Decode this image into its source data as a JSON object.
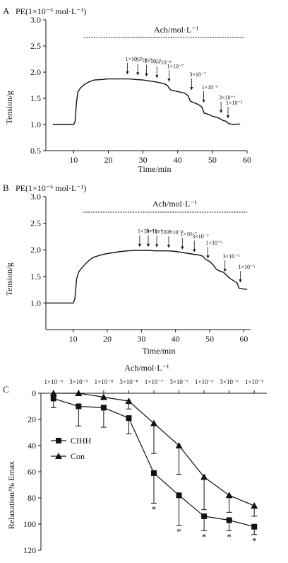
{
  "chart_data": [
    {
      "id": "A",
      "type": "line",
      "panel_label": "A",
      "pe_label": "PE(1×10⁻⁶ mol·L⁻¹)",
      "ach_label": "Ach/mol·L⁻¹",
      "xlabel": "Time/min",
      "ylabel": "Tension/g",
      "xlim": [
        2,
        60
      ],
      "ylim": [
        0.5,
        3.0
      ],
      "x_ticks": [
        "10",
        "20",
        "30",
        "40",
        "50",
        "60"
      ],
      "y_ticks": [
        "0.5",
        "1.0",
        "1.5",
        "2.0",
        "2.5",
        "3.0"
      ],
      "ach_bar": [
        13,
        59
      ],
      "trace": [
        [
          4,
          1.0
        ],
        [
          6,
          1.0
        ],
        [
          8,
          1.0
        ],
        [
          10,
          1.0
        ],
        [
          10.4,
          1.05
        ],
        [
          10.8,
          1.4
        ],
        [
          11.2,
          1.62
        ],
        [
          12,
          1.7
        ],
        [
          13,
          1.76
        ],
        [
          14,
          1.8
        ],
        [
          15,
          1.83
        ],
        [
          16,
          1.85
        ],
        [
          18,
          1.86
        ],
        [
          20,
          1.87
        ],
        [
          22,
          1.87
        ],
        [
          24,
          1.87
        ],
        [
          26,
          1.87
        ],
        [
          28,
          1.86
        ],
        [
          30,
          1.85
        ],
        [
          32,
          1.83
        ],
        [
          34,
          1.81
        ],
        [
          36,
          1.78
        ],
        [
          37,
          1.75
        ],
        [
          37.5,
          1.7
        ],
        [
          38,
          1.66
        ],
        [
          40,
          1.63
        ],
        [
          42,
          1.6
        ],
        [
          43,
          1.55
        ],
        [
          43.6,
          1.45
        ],
        [
          44.5,
          1.42
        ],
        [
          46,
          1.38
        ],
        [
          47,
          1.33
        ],
        [
          47.6,
          1.22
        ],
        [
          49,
          1.19
        ],
        [
          50,
          1.16
        ],
        [
          51,
          1.14
        ],
        [
          52,
          1.12
        ],
        [
          52.5,
          1.1
        ],
        [
          53,
          1.08
        ],
        [
          54,
          1.06
        ],
        [
          54.6,
          1.02
        ],
        [
          56,
          1.0
        ],
        [
          58,
          1.01
        ]
      ],
      "annotations": [
        {
          "text": "1×10⁻⁹",
          "x": 25.5,
          "y_tip": 1.92
        },
        {
          "text": "3×10⁻⁹",
          "x": 28.5,
          "y_tip": 1.9
        },
        {
          "text": "1×10⁻⁸",
          "x": 31,
          "y_tip": 1.88
        },
        {
          "text": "3×10⁻⁸",
          "x": 34,
          "y_tip": 1.85
        },
        {
          "text": "1×10⁻⁷",
          "x": 37.5,
          "y_tip": 1.78
        },
        {
          "text": "3×10⁻⁷",
          "x": 44,
          "y_tip": 1.62
        },
        {
          "text": "1×10⁻⁶",
          "x": 47.5,
          "y_tip": 1.38
        },
        {
          "text": "3×10⁻⁶",
          "x": 52.5,
          "y_tip": 1.18
        },
        {
          "text": "1×10⁻⁵",
          "x": 54.5,
          "y_tip": 1.08
        }
      ]
    },
    {
      "id": "B",
      "type": "line",
      "panel_label": "B",
      "pe_label": "PE(1×10⁻⁶ mol·L⁻¹)",
      "ach_label": "Ach/mol·L⁻¹",
      "xlabel": "Time/min",
      "ylabel": "Tension/g",
      "xlim": [
        2,
        62
      ],
      "ylim": [
        0.5,
        3.0
      ],
      "x_ticks": [
        "10",
        "20",
        "30",
        "40",
        "50",
        "60"
      ],
      "y_ticks": [
        "1.0",
        "1.5",
        "2.0",
        "2.5",
        "3.0"
      ],
      "ach_bar": [
        13,
        61
      ],
      "trace": [
        [
          2,
          1.0
        ],
        [
          5,
          1.0
        ],
        [
          8,
          1.0
        ],
        [
          10,
          1.0
        ],
        [
          10.5,
          1.08
        ],
        [
          11,
          1.45
        ],
        [
          11.6,
          1.58
        ],
        [
          12.5,
          1.66
        ],
        [
          14,
          1.76
        ],
        [
          15,
          1.82
        ],
        [
          16,
          1.86
        ],
        [
          18,
          1.9
        ],
        [
          20,
          1.93
        ],
        [
          22,
          1.95
        ],
        [
          24,
          1.97
        ],
        [
          26,
          1.98
        ],
        [
          28,
          1.99
        ],
        [
          30,
          1.99
        ],
        [
          32,
          1.99
        ],
        [
          34,
          1.98
        ],
        [
          36,
          1.98
        ],
        [
          38,
          1.98
        ],
        [
          40,
          1.97
        ],
        [
          42,
          1.95
        ],
        [
          44,
          1.93
        ],
        [
          46,
          1.91
        ],
        [
          47,
          1.9
        ],
        [
          48,
          1.88
        ],
        [
          48.8,
          1.82
        ],
        [
          50,
          1.78
        ],
        [
          51,
          1.72
        ],
        [
          52,
          1.63
        ],
        [
          53,
          1.6
        ],
        [
          54,
          1.58
        ],
        [
          55,
          1.52
        ],
        [
          56,
          1.46
        ],
        [
          57,
          1.42
        ],
        [
          58,
          1.38
        ],
        [
          58.6,
          1.28
        ],
        [
          60,
          1.26
        ],
        [
          61,
          1.26
        ]
      ],
      "annotations": [
        {
          "text": "1×10⁻⁹",
          "x": 29.5,
          "y_tip": 2.02
        },
        {
          "text": "3×10⁻⁹",
          "x": 32,
          "y_tip": 2.02
        },
        {
          "text": "1×10⁻⁸",
          "x": 34.5,
          "y_tip": 2.01
        },
        {
          "text": "3×10⁻⁸",
          "x": 38,
          "y_tip": 2.0
        },
        {
          "text": "1×10⁻⁷",
          "x": 42,
          "y_tip": 1.97
        },
        {
          "text": "3×10⁻⁷",
          "x": 45.5,
          "y_tip": 1.92
        },
        {
          "text": "1×10⁻⁶",
          "x": 49.5,
          "y_tip": 1.8
        },
        {
          "text": "3×10⁻⁶",
          "x": 54.5,
          "y_tip": 1.55
        },
        {
          "text": "1×10⁻⁵",
          "x": 59,
          "y_tip": 1.35
        }
      ]
    },
    {
      "id": "C",
      "type": "line",
      "panel_label": "C",
      "top_label": "Ach/mol·L⁻¹",
      "ylabel": "Relaxation/% Emax",
      "categories": [
        "1×10⁻⁹",
        "3×10⁻⁹",
        "1×10⁻⁸",
        "3×10⁻⁸",
        "1×10⁻⁷",
        "3×10⁻⁷",
        "1×10⁻⁶",
        "3×10⁻⁶",
        "1×10⁻⁵"
      ],
      "ylim": [
        0,
        120
      ],
      "y_inverted": true,
      "y_ticks": [
        "0",
        "20",
        "40",
        "60",
        "80",
        "100",
        "120"
      ],
      "series": [
        {
          "name": "CIHH",
          "marker": "square",
          "values": [
            4,
            10,
            11,
            19,
            61,
            78,
            94,
            97,
            102
          ],
          "errors": [
            7,
            15,
            15,
            12,
            23,
            23,
            11,
            8,
            6
          ],
          "significant": [
            false,
            false,
            false,
            false,
            true,
            true,
            true,
            true,
            true
          ]
        },
        {
          "name": "Con",
          "marker": "triangle",
          "values": [
            0,
            0,
            3,
            6,
            23,
            40,
            64,
            78,
            86
          ],
          "errors": [
            0,
            0,
            0,
            6,
            23,
            22,
            25,
            13,
            8
          ]
        }
      ],
      "legend_position": "left-middle",
      "significance_mark": "*"
    }
  ]
}
